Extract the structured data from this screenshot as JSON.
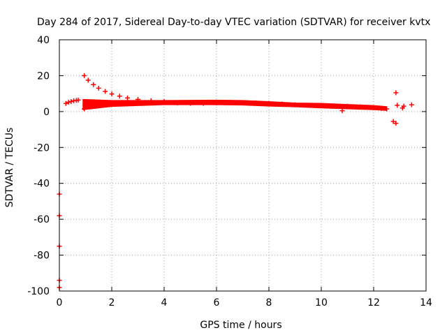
{
  "chart_data": {
    "type": "scatter",
    "title": "Day 284 of 2017, Sidereal Day-to-day VTEC variation (SDTVAR) for receiver kvtx",
    "xlabel": "GPS time / hours",
    "ylabel": "SDTVAR / TECUs",
    "xlim": [
      0,
      14
    ],
    "ylim": [
      -100,
      40
    ],
    "xticks": [
      0,
      2,
      4,
      6,
      8,
      10,
      12,
      14
    ],
    "yticks": [
      -100,
      -80,
      -60,
      -40,
      -20,
      0,
      20,
      40
    ],
    "grid": true,
    "marker": "plus",
    "color": "#ff0000",
    "series": [
      {
        "points": [
          [
            0.0,
            -46
          ],
          [
            0.0,
            -58
          ],
          [
            0.0,
            -75
          ],
          [
            0.0,
            -94
          ],
          [
            0.0,
            -98
          ],
          [
            0.25,
            4.5
          ],
          [
            0.35,
            5.2
          ],
          [
            0.45,
            5.6
          ],
          [
            0.55,
            6.0
          ],
          [
            0.65,
            6.2
          ],
          [
            0.72,
            6.4
          ],
          [
            0.95,
            20
          ],
          [
            1.1,
            17.5
          ],
          [
            1.3,
            15
          ],
          [
            1.5,
            13
          ],
          [
            1.75,
            11.2
          ],
          [
            2.0,
            9.8
          ],
          [
            2.3,
            8.6
          ],
          [
            2.6,
            7.6
          ],
          [
            3.0,
            6.8
          ],
          [
            3.5,
            6.0
          ],
          [
            4.0,
            5.6
          ],
          [
            0.95,
            1.5
          ],
          [
            1.0,
            3.5
          ],
          [
            1.2,
            3.2
          ],
          [
            1.5,
            3.5
          ],
          [
            1.8,
            4.0
          ],
          [
            2.0,
            4.2
          ],
          [
            2.5,
            4.5
          ],
          [
            3.0,
            4.8
          ],
          [
            3.5,
            5.0
          ],
          [
            4.0,
            5.0
          ],
          [
            4.5,
            4.8
          ],
          [
            5.0,
            4.6
          ],
          [
            5.5,
            4.6
          ],
          [
            6.0,
            4.8
          ],
          [
            6.5,
            5.0
          ],
          [
            7.0,
            5.0
          ],
          [
            7.5,
            4.8
          ],
          [
            8.0,
            4.6
          ],
          [
            8.5,
            4.2
          ],
          [
            9.0,
            3.8
          ],
          [
            9.5,
            3.5
          ],
          [
            10.0,
            3.4
          ],
          [
            10.3,
            3.2
          ],
          [
            10.6,
            3.0
          ],
          [
            10.8,
            0.5
          ],
          [
            11.0,
            3.0
          ],
          [
            11.5,
            2.6
          ],
          [
            12.0,
            2.2
          ],
          [
            12.3,
            1.8
          ],
          [
            12.5,
            1.5
          ],
          [
            12.75,
            -5.5
          ],
          [
            12.85,
            -6.5
          ],
          [
            12.85,
            10.5
          ],
          [
            12.9,
            3.5
          ],
          [
            13.1,
            2.0
          ],
          [
            13.15,
            3.0
          ],
          [
            13.45,
            3.8
          ]
        ],
        "band_upper": [
          [
            0.9,
            6.8
          ],
          [
            2,
            6.2
          ],
          [
            4,
            6.2
          ],
          [
            6,
            6.4
          ],
          [
            7,
            6.2
          ],
          [
            8,
            5.6
          ],
          [
            9,
            4.8
          ],
          [
            10,
            4.6
          ],
          [
            11,
            4.0
          ],
          [
            12,
            3.4
          ],
          [
            12.5,
            2.8
          ]
        ],
        "band_lower": [
          [
            0.9,
            1.0
          ],
          [
            2,
            2.8
          ],
          [
            4,
            3.8
          ],
          [
            6,
            3.8
          ],
          [
            7,
            3.6
          ],
          [
            8,
            3.0
          ],
          [
            9,
            2.6
          ],
          [
            10,
            2.0
          ],
          [
            11,
            1.5
          ],
          [
            12,
            1.0
          ],
          [
            12.5,
            0.6
          ]
        ]
      }
    ]
  }
}
